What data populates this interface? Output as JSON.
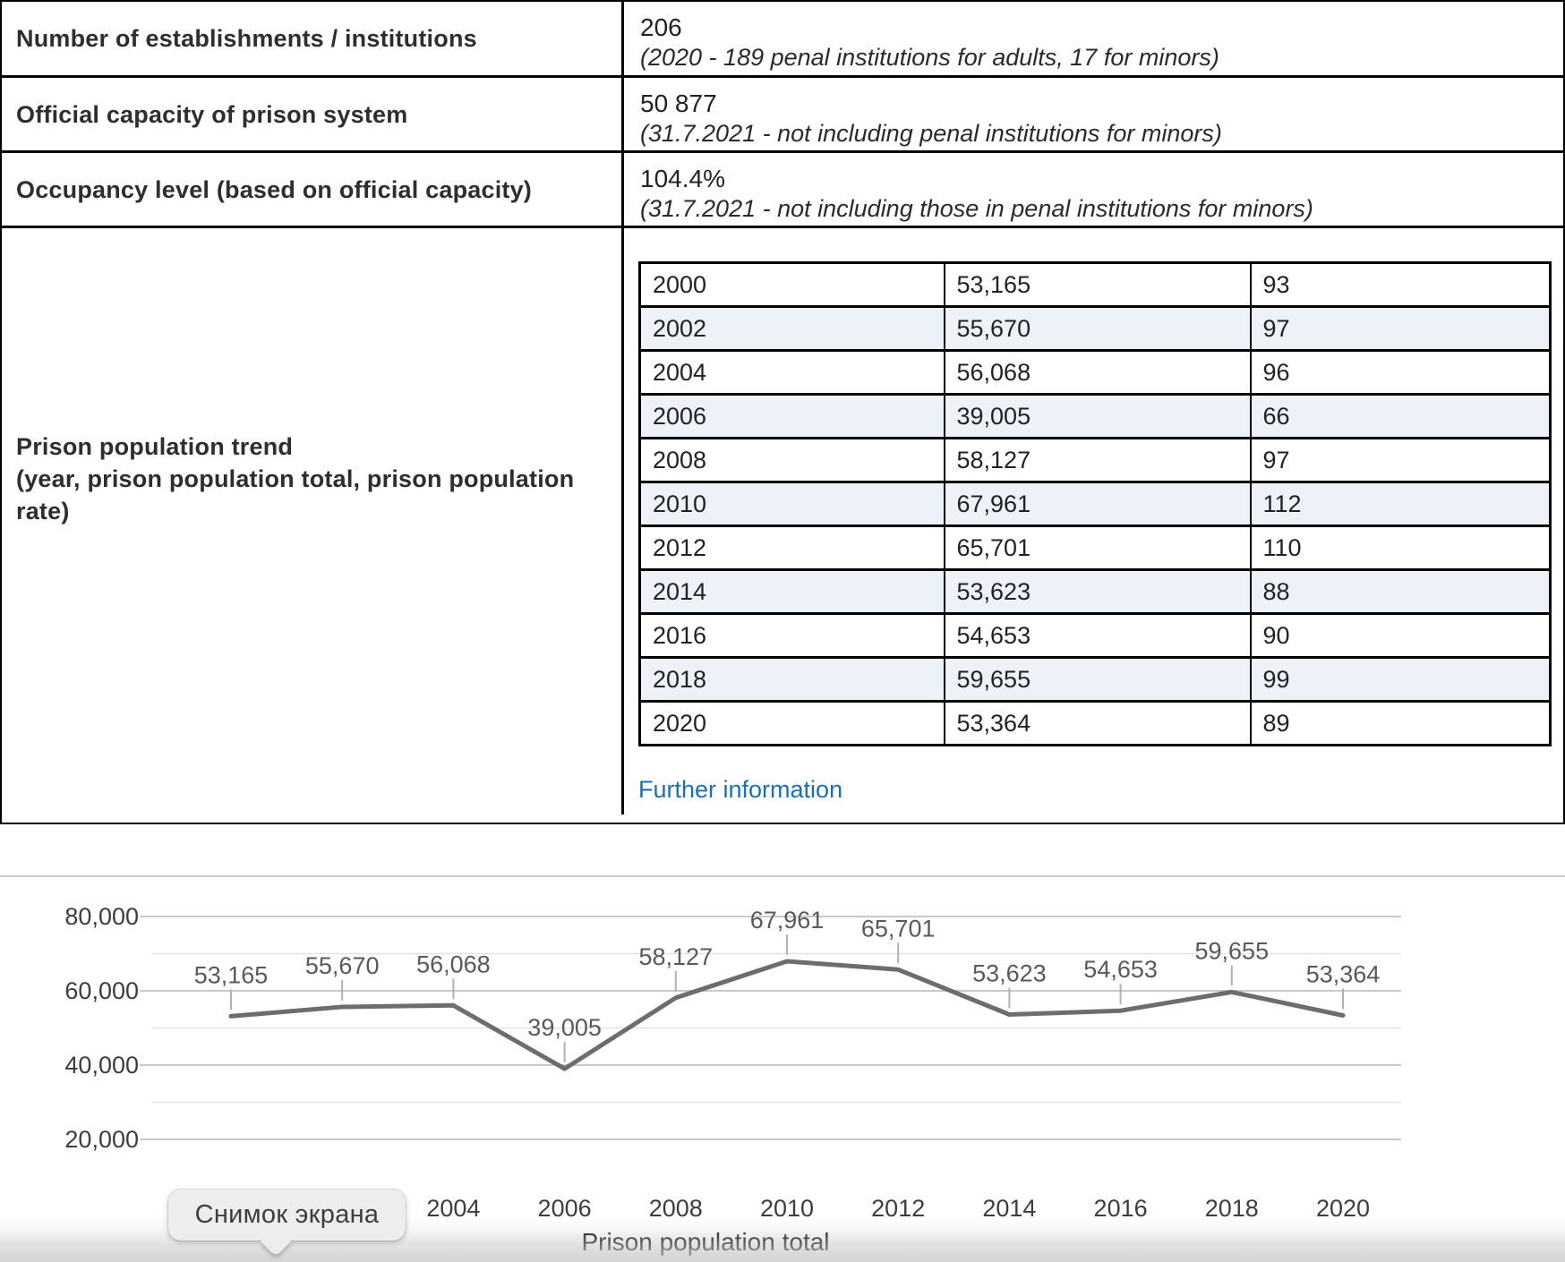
{
  "info_table": {
    "rows": [
      {
        "label": "Number of establishments / institutions",
        "value": "206",
        "note": "(2020 - 189 penal institutions for adults, 17 for minors)"
      },
      {
        "label": "Official capacity of prison system",
        "value": "50 877",
        "note": "(31.7.2021 - not including penal institutions for minors)"
      },
      {
        "label": "Occupancy level (based on official capacity)",
        "value": "104.4%",
        "note": "(31.7.2021 - not including those in penal institutions for minors)"
      }
    ],
    "trend_label": "Prison population trend\n(year, prison population total, prison population rate)",
    "trend_rows": [
      [
        "2000",
        "53,165",
        "93"
      ],
      [
        "2002",
        "55,670",
        "97"
      ],
      [
        "2004",
        "56,068",
        "96"
      ],
      [
        "2006",
        "39,005",
        "66"
      ],
      [
        "2008",
        "58,127",
        "97"
      ],
      [
        "2010",
        "67,961",
        "112"
      ],
      [
        "2012",
        "65,701",
        "110"
      ],
      [
        "2014",
        "53,623",
        "88"
      ],
      [
        "2016",
        "54,653",
        "90"
      ],
      [
        "2018",
        "59,655",
        "99"
      ],
      [
        "2020",
        "53,364",
        "89"
      ]
    ],
    "link_label": "Further information",
    "link_color": "#1b6fb5",
    "alt_row_color": "#edf1f8"
  },
  "chart_data": {
    "type": "line",
    "x": [
      2000,
      2002,
      2004,
      2006,
      2008,
      2010,
      2012,
      2014,
      2016,
      2018,
      2020
    ],
    "values": [
      53165,
      55670,
      56068,
      39005,
      58127,
      67961,
      65701,
      53623,
      54653,
      59655,
      53364
    ],
    "point_labels": [
      "53,165",
      "55,670",
      "56,068",
      "39,005",
      "58,127",
      "67,961",
      "65,701",
      "53,623",
      "54,653",
      "59,655",
      "53,364"
    ],
    "x_tick_labels": [
      "2004",
      "2006",
      "2008",
      "2010",
      "2012",
      "2014",
      "2016",
      "2018",
      "2020"
    ],
    "y_ticks": [
      80000,
      60000,
      40000,
      20000
    ],
    "y_tick_labels": [
      "80,000",
      "60,000",
      "40,000",
      "20,000"
    ],
    "xlabel": "Prison population total",
    "ylim": [
      10000,
      90000
    ],
    "grid_step": 10000,
    "grid": true,
    "legend_position": "none",
    "line_color": "#6d6d6d",
    "label_color": "#595959",
    "grid_major_color": "#c9c9c9",
    "grid_minor_color": "#e2e2e2"
  },
  "tooltip": {
    "label": "Снимок экрана"
  }
}
